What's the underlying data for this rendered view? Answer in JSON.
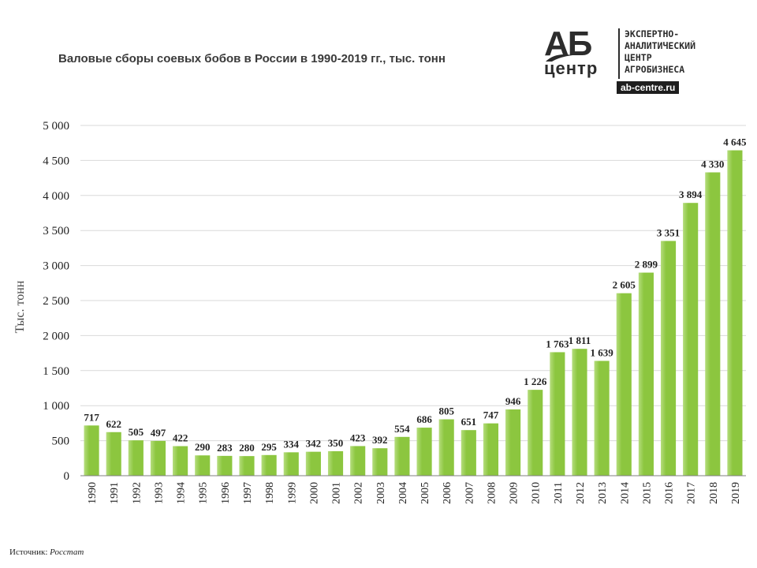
{
  "title": "Валовые сборы соевых бобов в России в 1990-2019 гг., тыс. тонн",
  "logo": {
    "mark_top": "АБ",
    "mark_bottom": "центр",
    "text": "ЭКСПЕРТНО-\nАНАЛИТИЧЕСКИЙ\nЦЕНТР\nАГРОБИЗНЕСА",
    "url": "ab-centre.ru"
  },
  "source": {
    "label": "Источник:",
    "value": "Росстат"
  },
  "colors": {
    "bar": "#8cc63f",
    "bar_light": "#b5dd7d",
    "grid": "#d9d9d9",
    "axis": "#7f7f7f",
    "text": "#222222"
  },
  "chart_data": {
    "type": "bar",
    "title": "Валовые сборы соевых бобов в России в 1990-2019 гг., тыс. тонн",
    "xlabel": "",
    "ylabel": "Тыс. тонн",
    "ylim": [
      0,
      5000
    ],
    "yticks": [
      0,
      500,
      1000,
      1500,
      2000,
      2500,
      3000,
      3500,
      4000,
      4500,
      5000
    ],
    "ytick_labels": [
      "0",
      "500",
      "1 000",
      "1 500",
      "2 000",
      "2 500",
      "3 000",
      "3 500",
      "4 000",
      "4 500",
      "5 000"
    ],
    "grid": true,
    "categories": [
      "1990",
      "1991",
      "1992",
      "1993",
      "1994",
      "1995",
      "1996",
      "1997",
      "1998",
      "1999",
      "2000",
      "2001",
      "2002",
      "2003",
      "2004",
      "2005",
      "2006",
      "2007",
      "2008",
      "2009",
      "2010",
      "2011",
      "2012",
      "2013",
      "2014",
      "2015",
      "2016",
      "2017",
      "2018",
      "2019"
    ],
    "values": [
      717,
      622,
      505,
      497,
      422,
      290,
      283,
      280,
      295,
      334,
      342,
      350,
      423,
      392,
      554,
      686,
      805,
      651,
      747,
      946,
      1226,
      1763,
      1811,
      1639,
      2605,
      2899,
      3351,
      3894,
      4330,
      4645
    ],
    "value_labels": [
      "717",
      "622",
      "505",
      "497",
      "422",
      "290",
      "283",
      "280",
      "295",
      "334",
      "342",
      "350",
      "423",
      "392",
      "554",
      "686",
      "805",
      "651",
      "747",
      "946",
      "1 226",
      "1 763",
      "1 811",
      "1 639",
      "2 605",
      "2 899",
      "3 351",
      "3 894",
      "4 330",
      "4 645"
    ]
  }
}
